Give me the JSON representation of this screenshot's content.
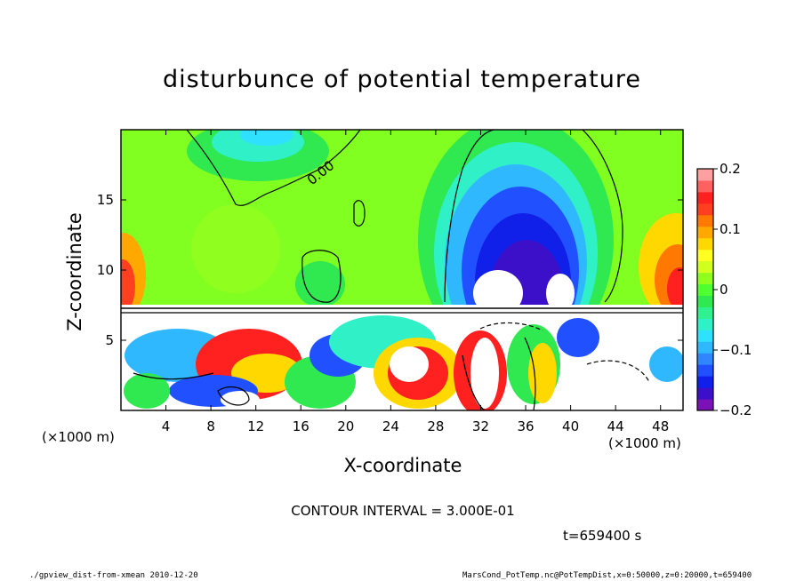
{
  "chart_data": {
    "type": "heatmap",
    "title": "disturbunce of potential temperature",
    "xlabel": "X-coordinate",
    "ylabel": "Z-coordinate",
    "x_unit": "(×1000 m)",
    "xlim": [
      0,
      50
    ],
    "ylim": [
      0,
      20
    ],
    "x_ticks": [
      4,
      8,
      12,
      16,
      20,
      24,
      28,
      32,
      36,
      40,
      44,
      48
    ],
    "y_ticks": [
      5,
      10,
      15
    ],
    "colorbar": {
      "range": [
        -0.2,
        0.2
      ],
      "tick_values": [
        0.2,
        0.1,
        0,
        -0.1,
        -0.2
      ],
      "tick_labels": [
        "0.2",
        "0.1",
        "0",
        "−0.1",
        "−0.2"
      ],
      "colors": [
        "#7a12b8",
        "#3b10c8",
        "#1020e8",
        "#2050ff",
        "#2f86ff",
        "#30b8ff",
        "#30e0ff",
        "#30f0c8",
        "#30f090",
        "#30e850",
        "#50ff30",
        "#90ff20",
        "#d0ff20",
        "#ffff20",
        "#ffd800",
        "#ffa800",
        "#ff7800",
        "#ff4020",
        "#ff2020",
        "#ff6060",
        "#ffa0a0"
      ]
    },
    "contour_label": "0.00",
    "contour_interval_text": "CONTOUR INTERVAL = 3.000E-01",
    "time_text": "t=659400 s"
  },
  "footer": {
    "left": "./gpview_dist-from-xmean  2010-12-20",
    "right": "MarsCond_PotTemp.nc@PotTempDist,x=0:50000,z=0:20000,t=659400"
  }
}
